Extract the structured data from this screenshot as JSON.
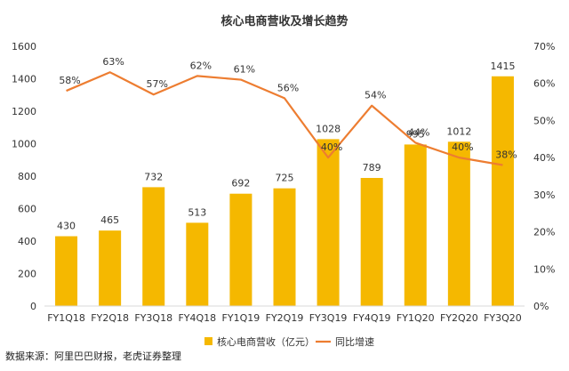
{
  "chart_data": {
    "type": "bar",
    "title": "核心电商营收及增长趋势",
    "categories": [
      "FY1Q18",
      "FY2Q18",
      "FY3Q18",
      "FY4Q18",
      "FY1Q19",
      "FY2Q19",
      "FY3Q19",
      "FY4Q19",
      "FY1Q20",
      "FY2Q20",
      "FY3Q20"
    ],
    "series": [
      {
        "name": "核心电商营收（亿元）",
        "kind": "bar",
        "axis": "left",
        "color": "#F5B800",
        "values": [
          430,
          465,
          732,
          513,
          692,
          725,
          1028,
          789,
          995,
          1012,
          1415
        ]
      },
      {
        "name": "同比增速",
        "kind": "line",
        "axis": "right",
        "color": "#ED7D31",
        "values": [
          58,
          63,
          57,
          62,
          61,
          56,
          40,
          54,
          44,
          40,
          38
        ],
        "labels": [
          "58%",
          "63%",
          "57%",
          "62%",
          "61%",
          "56%",
          "40%",
          "54%",
          "44%",
          "40%",
          "38%"
        ]
      }
    ],
    "ylim_left": [
      0,
      1600
    ],
    "yticks_left": [
      "0",
      "200",
      "400",
      "600",
      "800",
      "1000",
      "1200",
      "1400",
      "1600"
    ],
    "ylim_right": [
      0,
      70
    ],
    "yticks_right": [
      "0%",
      "10%",
      "20%",
      "30%",
      "40%",
      "50%",
      "60%",
      "70%"
    ],
    "grid": false,
    "legend_position": "bottom"
  },
  "footer": {
    "source": "数据来源：阿里巴巴财报，老虎证券整理"
  }
}
